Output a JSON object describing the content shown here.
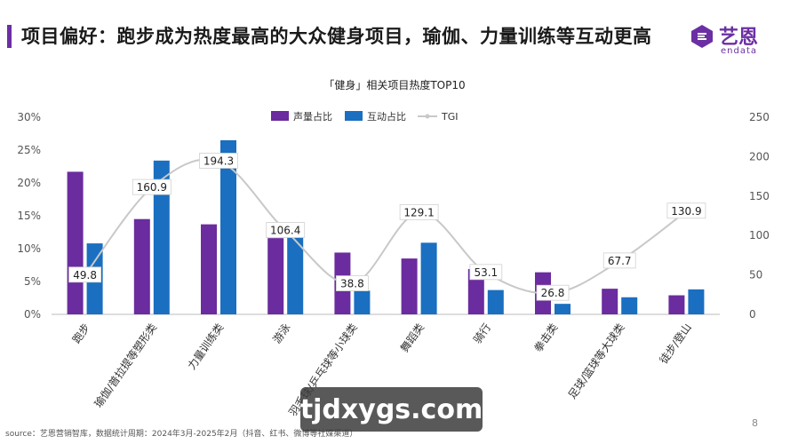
{
  "page": {
    "title": "项目偏好：跑步成为热度最高的大众健身项目，瑜伽、力量训练等互动更高",
    "logo_cn": "艺恩",
    "logo_en": "endata",
    "source": "source：艺恩营销智库，数据统计周期：2024年3月-2025年2月（抖音、红书、微博等社媒渠道）",
    "page_number": "8",
    "watermark": "tjdxygs.com"
  },
  "colors": {
    "accent": "#6b2fa3",
    "voice": "#6a2c9e",
    "interaction": "#1a6fc0",
    "tgi": "#c8c8c8"
  },
  "chart_data": {
    "type": "bar",
    "title": "「健身」相关项目热度TOP10",
    "categories": [
      "跑步",
      "瑜伽/普拉提等塑形类",
      "力量训练类",
      "游泳",
      "羽毛球/乒乓球等小球类",
      "舞蹈类",
      "骑行",
      "拳击类",
      "足球/篮球等大球类",
      "徒步/登山"
    ],
    "series": [
      {
        "name": "声量占比",
        "values": [
          21.7,
          14.5,
          13.7,
          11.6,
          9.4,
          8.5,
          6.9,
          6.4,
          3.9,
          2.9
        ],
        "axis": "left"
      },
      {
        "name": "互动占比",
        "values": [
          10.8,
          23.4,
          26.5,
          11.7,
          3.6,
          10.9,
          3.7,
          1.6,
          2.6,
          3.8
        ],
        "axis": "left"
      },
      {
        "name": "TGI",
        "type": "line",
        "values": [
          49.8,
          160.9,
          194.3,
          106.4,
          38.8,
          129.1,
          53.1,
          26.8,
          67.7,
          130.9
        ],
        "axis": "right"
      }
    ],
    "y_left": {
      "min": 0,
      "max": 30,
      "ticks": [
        "0%",
        "5%",
        "10%",
        "15%",
        "20%",
        "25%",
        "30%"
      ]
    },
    "y_right": {
      "min": 0,
      "max": 250,
      "ticks": [
        "0",
        "50",
        "100",
        "150",
        "200",
        "250"
      ]
    },
    "grid": false,
    "legend": "top-center"
  }
}
